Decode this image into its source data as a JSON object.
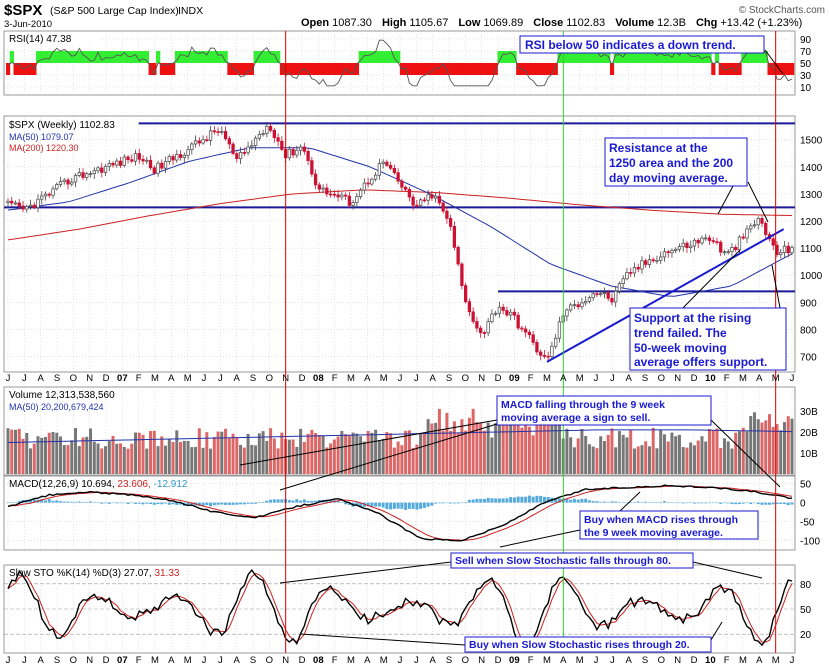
{
  "header": {
    "symbol": "$SPX",
    "name": "(S&P 500 Large Cap Index)",
    "exchange": "INDX",
    "date": "3-Jun-2010",
    "open_label": "Open",
    "open": "1087.30",
    "high_label": "High",
    "high": "1105.67",
    "low_label": "Low",
    "low": "1069.89",
    "close_label": "Close",
    "close": "1102.83",
    "volume_label": "Volume",
    "volume": "12.3B",
    "chg_label": "Chg",
    "chg": "+13.42 (+1.23%)",
    "credit": "© StockCharts.com"
  },
  "colors": {
    "up": "#444444",
    "down": "#cc1133",
    "ma50": "#2233aa",
    "ma200": "#cc2222",
    "annotation": "#1a1ad0",
    "rsi_green": "#33ee33",
    "rsi_red": "#ee1111",
    "hist": "#55aadd",
    "grid": "#c8c8c8",
    "marker_red": "#dd0000",
    "marker_green": "#33cc33"
  },
  "rsi_panel": {
    "label": "RSI(14) 47.38",
    "axis": [
      "90",
      "70",
      "50",
      "30",
      "10"
    ],
    "annotation": "RSI below 50 indicates a down trend."
  },
  "price_panel": {
    "legend": [
      "$SPX (Weekly) 1102.83",
      "MA(50) 1079.07",
      "MA(200) 1220.30"
    ],
    "axis": [
      "1500",
      "1400",
      "1300",
      "1200",
      "1100",
      "1000",
      "900",
      "800",
      "700"
    ],
    "annotations": [
      "Resistance at the",
      "1250 area and the 200",
      "day moving average.",
      "Support at the rising",
      "trend failed. The",
      "50-week moving",
      "average offers support."
    ]
  },
  "months": [
    "J",
    "J",
    "A",
    "S",
    "O",
    "N",
    "D",
    "07",
    "F",
    "M",
    "A",
    "M",
    "J",
    "J",
    "A",
    "S",
    "O",
    "N",
    "D",
    "08",
    "F",
    "M",
    "A",
    "M",
    "J",
    "J",
    "A",
    "S",
    "O",
    "N",
    "D",
    "09",
    "F",
    "M",
    "A",
    "M",
    "J",
    "J",
    "A",
    "S",
    "O",
    "N",
    "D",
    "10",
    "F",
    "M",
    "A",
    "M",
    "J"
  ],
  "volume_panel": {
    "legend": [
      "Volume 12,313,538,560",
      "MA(50) 20,200,679,424"
    ],
    "axis": [
      "30B",
      "20B",
      "10B"
    ],
    "annotation": [
      "MACD falling through the 9 week",
      "moving average a sign to sell."
    ]
  },
  "macd_panel": {
    "label": "MACD(12,26,9) 10.694,",
    "sig": "23.606,",
    "hist": "-12.912",
    "axis": [
      "50",
      "0",
      "-50",
      "-100"
    ],
    "annotation": [
      "Buy when MACD rises through",
      "the 9 week moving average."
    ]
  },
  "sto_panel": {
    "label": "Slow STO %K(14) %D(3) 27.07,",
    "d_value": "31.33",
    "axis": [
      "80",
      "50",
      "20"
    ],
    "annotation_sell": "Sell when Slow Stochastic falls through 80.",
    "annotation_buy": "Buy when Slow Stochastic rises through 20."
  },
  "chart_data": {
    "type": "candlestick",
    "title": "$SPX (S&P 500 Large Cap Index) INDX, Weekly",
    "x_period": "Jun 2006 - Jun 2010",
    "price_axis_range": [
      650,
      1580
    ],
    "price_anchors": [
      {
        "t": "2006-06",
        "v": 1260
      },
      {
        "t": "2006-07",
        "v": 1240
      },
      {
        "t": "2006-10",
        "v": 1360
      },
      {
        "t": "2007-02",
        "v": 1440
      },
      {
        "t": "2007-03",
        "v": 1390
      },
      {
        "t": "2007-07",
        "v": 1540
      },
      {
        "t": "2007-08",
        "v": 1420
      },
      {
        "t": "2007-10",
        "v": 1560
      },
      {
        "t": "2007-11",
        "v": 1440
      },
      {
        "t": "2007-12",
        "v": 1480
      },
      {
        "t": "2008-01",
        "v": 1320
      },
      {
        "t": "2008-03",
        "v": 1270
      },
      {
        "t": "2008-05",
        "v": 1420
      },
      {
        "t": "2008-07",
        "v": 1250
      },
      {
        "t": "2008-08",
        "v": 1300
      },
      {
        "t": "2008-09",
        "v": 1200
      },
      {
        "t": "2008-10",
        "v": 900
      },
      {
        "t": "2008-11",
        "v": 780
      },
      {
        "t": "2008-12",
        "v": 890
      },
      {
        "t": "2009-01",
        "v": 840
      },
      {
        "t": "2009-03",
        "v": 680
      },
      {
        "t": "2009-04",
        "v": 860
      },
      {
        "t": "2009-06",
        "v": 940
      },
      {
        "t": "2009-07",
        "v": 910
      },
      {
        "t": "2009-08",
        "v": 1010
      },
      {
        "t": "2009-10",
        "v": 1080
      },
      {
        "t": "2009-11",
        "v": 1100
      },
      {
        "t": "2010-01",
        "v": 1140
      },
      {
        "t": "2010-02",
        "v": 1070
      },
      {
        "t": "2010-04",
        "v": 1210
      },
      {
        "t": "2010-05",
        "v": 1080
      },
      {
        "t": "2010-06",
        "v": 1102
      }
    ],
    "ma50_anchors": [
      1240,
      1270,
      1340,
      1420,
      1470,
      1470,
      1400,
      1300,
      1180,
      1040,
      960,
      920,
      960,
      1079
    ],
    "ma200_anchors": [
      1130,
      1170,
      1220,
      1265,
      1300,
      1315,
      1305,
      1285,
      1260,
      1240,
      1225,
      1220
    ],
    "resistance_levels": [
      1560,
      1250,
      940
    ],
    "trendline": {
      "from": {
        "t": "2009-03",
        "v": 680
      },
      "to": {
        "t": "2010-05",
        "v": 1170
      }
    },
    "rsi_axis_range": [
      0,
      100
    ],
    "volume_axis_range": [
      0,
      40
    ],
    "volume_units": "B",
    "volume_ma50_range_b": [
      15,
      21
    ],
    "macd_axis_range": [
      -120,
      65
    ],
    "macd_anchors": [
      -10,
      20,
      28,
      20,
      5,
      -25,
      -40,
      -10,
      10,
      -30,
      -95,
      -100,
      -60,
      0,
      35,
      40,
      45,
      40,
      30,
      10.694
    ],
    "stochastic_axis_range": [
      0,
      100
    ],
    "markers": [
      {
        "type": "sell",
        "t": "2007-11",
        "color": "red"
      },
      {
        "type": "buy",
        "t": "2009-04",
        "color": "green"
      },
      {
        "type": "sell",
        "t": "2010-05",
        "color": "red"
      }
    ]
  }
}
